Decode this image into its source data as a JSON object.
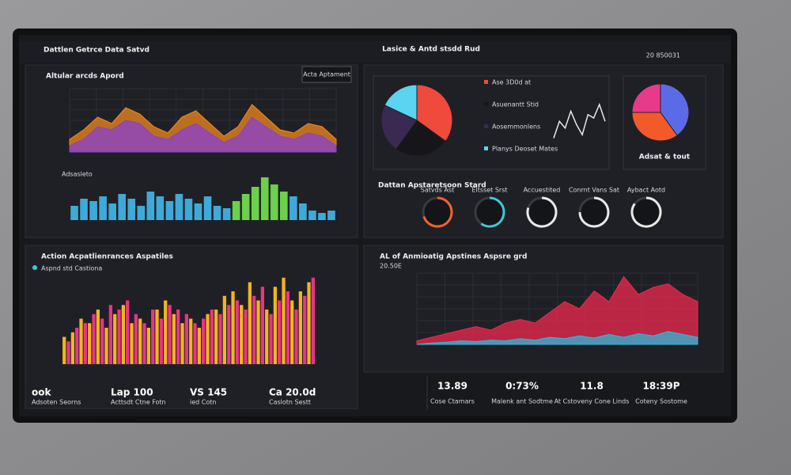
{
  "header": {
    "left": "Dattlen Getrce Data Satvd",
    "center": "Lasice & Antd stsdd Rud",
    "right": "20 850031"
  },
  "panels": {
    "trend_title": "Altular arcds Apord",
    "trend_button": "Acta Aptament",
    "bars_label": "Adsasleto",
    "pie_title": "Dattan Apstaretsoon Stard",
    "pie_small_label": "Adsat & tout",
    "activity_title": "Action Acpatlienrances Aspatiles",
    "activity_legend": "Aspnd std Castiona",
    "analysis_title": "AL of Anmioatig Apstines Aspsre grd",
    "analysis_value": "20.50E"
  },
  "stats_left": [
    {
      "value": "ook",
      "label": "Adsoten Seorns"
    },
    {
      "value": "Lap 100",
      "label": "Acttsdt Ctne Fotn"
    },
    {
      "value": "VS 145",
      "label": "ied Cotn"
    },
    {
      "value": "Ca 20.0d",
      "label": "Caslotn Sestt"
    }
  ],
  "stats_right": [
    {
      "value": "13.89",
      "label": "Cose Ctamars"
    },
    {
      "value": "0:73%",
      "label": "Malenk ant Sodtme"
    },
    {
      "value": "11.8",
      "label": "At Cstoveny Cone Linds"
    },
    {
      "value": "18:39P",
      "label": "Coteny Sostome"
    }
  ],
  "chart_data": [
    {
      "type": "area",
      "ylim": [
        0,
        100
      ],
      "series": [
        {
          "color": "#f28a1e",
          "values": [
            20,
            35,
            55,
            45,
            70,
            60,
            40,
            30,
            55,
            65,
            45,
            25,
            40,
            75,
            55,
            35,
            30,
            45,
            40,
            20
          ]
        },
        {
          "color": "#8a3fd1",
          "values": [
            10,
            20,
            40,
            35,
            50,
            45,
            25,
            20,
            35,
            45,
            30,
            15,
            25,
            55,
            40,
            25,
            20,
            30,
            25,
            10
          ]
        }
      ]
    },
    {
      "type": "bar",
      "ylim": [
        0,
        100
      ],
      "series": [
        {
          "color": "#3fa9d8",
          "values": [
            30,
            45,
            40,
            50,
            35,
            55,
            45,
            30,
            60,
            50,
            40,
            55,
            45,
            35,
            50,
            30,
            25,
            40,
            55,
            70,
            90,
            75,
            60,
            50,
            35,
            20,
            15,
            20
          ]
        }
      ],
      "highlight_color": "#6bd14a"
    },
    {
      "type": "pie",
      "categories": [
        "Ase 3D0d at",
        "Asuenantt Stid",
        "Aosemmonlens",
        "Planys Deoset Mates"
      ],
      "values": [
        35,
        25,
        22,
        18
      ],
      "colors": [
        "#ef4a3c",
        "#16161a",
        "#3a2a52",
        "#5ad4f0"
      ]
    },
    {
      "type": "line",
      "ylim": [
        0,
        100
      ],
      "color": "#e8e8e8",
      "values": [
        30,
        55,
        45,
        70,
        50,
        35,
        65,
        60,
        80,
        55
      ]
    },
    {
      "type": "pie",
      "values": [
        40,
        35,
        25
      ],
      "colors": [
        "#5b6be8",
        "#f25a2a",
        "#e83a8a"
      ]
    },
    {
      "type": "gauge",
      "ylim": [
        0,
        100
      ],
      "categories": [
        "Satvds Ast",
        "Eltsset Srst",
        "Accuestited",
        "Conrnt Vans Sat",
        "Aybact Aotd"
      ],
      "values": [
        70,
        60,
        80,
        75,
        85
      ],
      "colors": [
        "#f2622a",
        "#3fc7d8",
        "#e8e8e8",
        "#e8e8e8",
        "#e8e8e8"
      ]
    },
    {
      "type": "bar",
      "ylim": [
        0,
        100
      ],
      "series": [
        {
          "color": "#f2b51e",
          "values": [
            30,
            35,
            50,
            45,
            60,
            40,
            55,
            65,
            45,
            50,
            40,
            60,
            70,
            55,
            45,
            50,
            40,
            55,
            60,
            75,
            80,
            65,
            90,
            70,
            60,
            85,
            95,
            70,
            80,
            90
          ]
        },
        {
          "color": "#e8348a",
          "values": [
            25,
            40,
            45,
            55,
            50,
            65,
            60,
            70,
            55,
            45,
            60,
            50,
            65,
            60,
            55,
            45,
            50,
            60,
            55,
            65,
            70,
            60,
            75,
            85,
            55,
            70,
            80,
            60,
            75,
            95
          ]
        }
      ]
    },
    {
      "type": "area",
      "ylim": [
        0,
        100
      ],
      "series": [
        {
          "color": "#f0284f",
          "values": [
            5,
            10,
            15,
            20,
            25,
            20,
            30,
            35,
            30,
            45,
            60,
            50,
            75,
            60,
            95,
            70,
            80,
            85,
            70,
            60
          ]
        },
        {
          "color": "#2fb8d8",
          "values": [
            0,
            2,
            3,
            5,
            4,
            6,
            5,
            8,
            6,
            10,
            8,
            12,
            9,
            14,
            10,
            15,
            12,
            18,
            14,
            10
          ]
        }
      ]
    }
  ]
}
